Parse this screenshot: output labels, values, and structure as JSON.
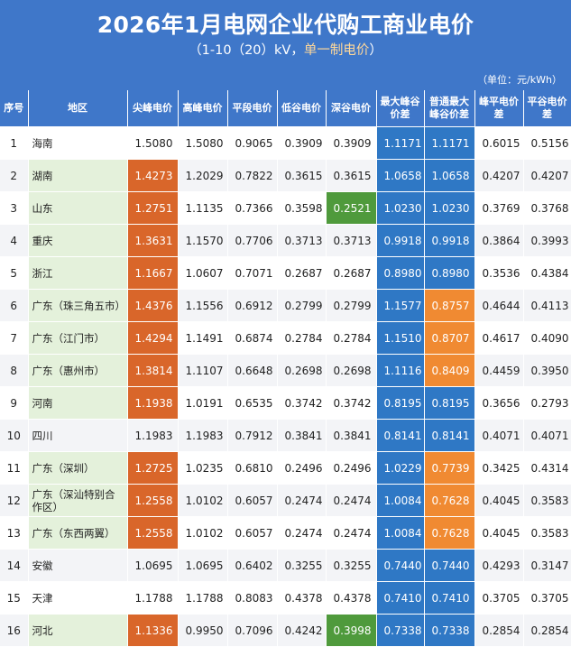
{
  "title": "2026年1月电网企业代购工商业电价",
  "subtitle_pre": "（1-10（20）kV，",
  "subtitle_hl": "单一制电价",
  "subtitle_post": "）",
  "unit": "（单位：元/kWh）",
  "columns": [
    "序号",
    "地区",
    "尖峰电价",
    "高峰电价",
    "平段电价",
    "低谷电价",
    "深谷电价",
    "最大峰谷价差",
    "普通最大峰谷价差",
    "峰平电价差",
    "平谷电价差"
  ],
  "colors": {
    "header_blue": "#3f77c9",
    "peak_orange": "#d9662a",
    "diff_blue": "#2f78c5",
    "diff_orange": "#f08a32",
    "valley_green": "#4f9a3c",
    "region_green": "#e4f1db"
  },
  "rows": [
    {
      "cells": [
        "1",
        "海南",
        "1.5080",
        "1.5080",
        "0.9065",
        "0.3909",
        "0.3909",
        "1.1171",
        "1.1171",
        "0.6015",
        "0.5156"
      ],
      "styles": [
        "",
        "",
        "",
        "",
        "",
        "",
        "",
        "blue",
        "blue",
        "",
        ""
      ]
    },
    {
      "cells": [
        "2",
        "湖南",
        "1.4273",
        "1.2029",
        "0.7822",
        "0.3615",
        "0.3615",
        "1.0658",
        "1.0658",
        "0.4207",
        "0.4207"
      ],
      "styles": [
        "",
        "green",
        "orange",
        "",
        "",
        "",
        "",
        "blue",
        "blue",
        "",
        ""
      ]
    },
    {
      "cells": [
        "3",
        "山东",
        "1.2751",
        "1.1135",
        "0.7366",
        "0.3598",
        "0.2521",
        "1.0230",
        "1.0230",
        "0.3769",
        "0.3768"
      ],
      "styles": [
        "",
        "green",
        "orange",
        "",
        "",
        "",
        "dgreen",
        "blue",
        "blue",
        "",
        ""
      ]
    },
    {
      "cells": [
        "4",
        "重庆",
        "1.3631",
        "1.1570",
        "0.7706",
        "0.3713",
        "0.3713",
        "0.9918",
        "0.9918",
        "0.3864",
        "0.3993"
      ],
      "styles": [
        "",
        "green",
        "orange",
        "",
        "",
        "",
        "",
        "blue",
        "blue",
        "",
        ""
      ]
    },
    {
      "cells": [
        "5",
        "浙江",
        "1.1667",
        "1.0607",
        "0.7071",
        "0.2687",
        "0.2687",
        "0.8980",
        "0.8980",
        "0.3536",
        "0.4384"
      ],
      "styles": [
        "",
        "green",
        "orange",
        "",
        "",
        "",
        "",
        "blue",
        "blue",
        "",
        ""
      ]
    },
    {
      "cells": [
        "6",
        "广东（珠三角五市）",
        "1.4376",
        "1.1556",
        "0.6912",
        "0.2799",
        "0.2799",
        "1.1577",
        "0.8757",
        "0.4644",
        "0.4113"
      ],
      "styles": [
        "",
        "green",
        "orange",
        "",
        "",
        "",
        "",
        "blue",
        "borange",
        "",
        ""
      ]
    },
    {
      "cells": [
        "7",
        "广东（江门市）",
        "1.4294",
        "1.1491",
        "0.6874",
        "0.2784",
        "0.2784",
        "1.1510",
        "0.8707",
        "0.4617",
        "0.4090"
      ],
      "styles": [
        "",
        "green",
        "orange",
        "",
        "",
        "",
        "",
        "blue",
        "borange",
        "",
        ""
      ]
    },
    {
      "cells": [
        "8",
        "广东（惠州市）",
        "1.3814",
        "1.1107",
        "0.6648",
        "0.2698",
        "0.2698",
        "1.1116",
        "0.8409",
        "0.4459",
        "0.3950"
      ],
      "styles": [
        "",
        "green",
        "orange",
        "",
        "",
        "",
        "",
        "blue",
        "borange",
        "",
        ""
      ]
    },
    {
      "cells": [
        "9",
        "河南",
        "1.1938",
        "1.0191",
        "0.6535",
        "0.3742",
        "0.3742",
        "0.8195",
        "0.8195",
        "0.3656",
        "0.2793"
      ],
      "styles": [
        "",
        "green",
        "orange",
        "",
        "",
        "",
        "",
        "blue",
        "blue",
        "",
        ""
      ]
    },
    {
      "cells": [
        "10",
        "四川",
        "1.1983",
        "1.1983",
        "0.7912",
        "0.3841",
        "0.3841",
        "0.8141",
        "0.8141",
        "0.4071",
        "0.4071"
      ],
      "styles": [
        "",
        "",
        "",
        "",
        "",
        "",
        "",
        "blue",
        "blue",
        "",
        ""
      ]
    },
    {
      "cells": [
        "11",
        "广东（深圳）",
        "1.2725",
        "1.0235",
        "0.6810",
        "0.2496",
        "0.2496",
        "1.0229",
        "0.7739",
        "0.3425",
        "0.4314"
      ],
      "styles": [
        "",
        "green",
        "orange",
        "",
        "",
        "",
        "",
        "blue",
        "borange",
        "",
        ""
      ]
    },
    {
      "cells": [
        "12",
        "广东（深汕特别合作区）",
        "1.2558",
        "1.0102",
        "0.6057",
        "0.2474",
        "0.2474",
        "1.0084",
        "0.7628",
        "0.4045",
        "0.3583"
      ],
      "styles": [
        "",
        "green",
        "orange",
        "",
        "",
        "",
        "",
        "blue",
        "borange",
        "",
        ""
      ]
    },
    {
      "cells": [
        "13",
        "广东（东西两翼）",
        "1.2558",
        "1.0102",
        "0.6057",
        "0.2474",
        "0.2474",
        "1.0084",
        "0.7628",
        "0.4045",
        "0.3583"
      ],
      "styles": [
        "",
        "green",
        "orange",
        "",
        "",
        "",
        "",
        "blue",
        "borange",
        "",
        ""
      ]
    },
    {
      "cells": [
        "14",
        "安徽",
        "1.0695",
        "1.0695",
        "0.6402",
        "0.3255",
        "0.3255",
        "0.7440",
        "0.7440",
        "0.4293",
        "0.3147"
      ],
      "styles": [
        "",
        "",
        "",
        "",
        "",
        "",
        "",
        "blue",
        "blue",
        "",
        ""
      ]
    },
    {
      "cells": [
        "15",
        "天津",
        "1.1788",
        "1.1788",
        "0.8083",
        "0.4378",
        "0.4378",
        "0.7410",
        "0.7410",
        "0.3705",
        "0.3705"
      ],
      "styles": [
        "",
        "",
        "",
        "",
        "",
        "",
        "",
        "blue",
        "blue",
        "",
        ""
      ]
    },
    {
      "cells": [
        "16",
        "河北",
        "1.1336",
        "0.9950",
        "0.7096",
        "0.4242",
        "0.3998",
        "0.7338",
        "0.7338",
        "0.2854",
        "0.2854"
      ],
      "styles": [
        "",
        "green",
        "orange",
        "",
        "",
        "",
        "dgreen",
        "blue",
        "blue",
        "",
        ""
      ]
    }
  ]
}
